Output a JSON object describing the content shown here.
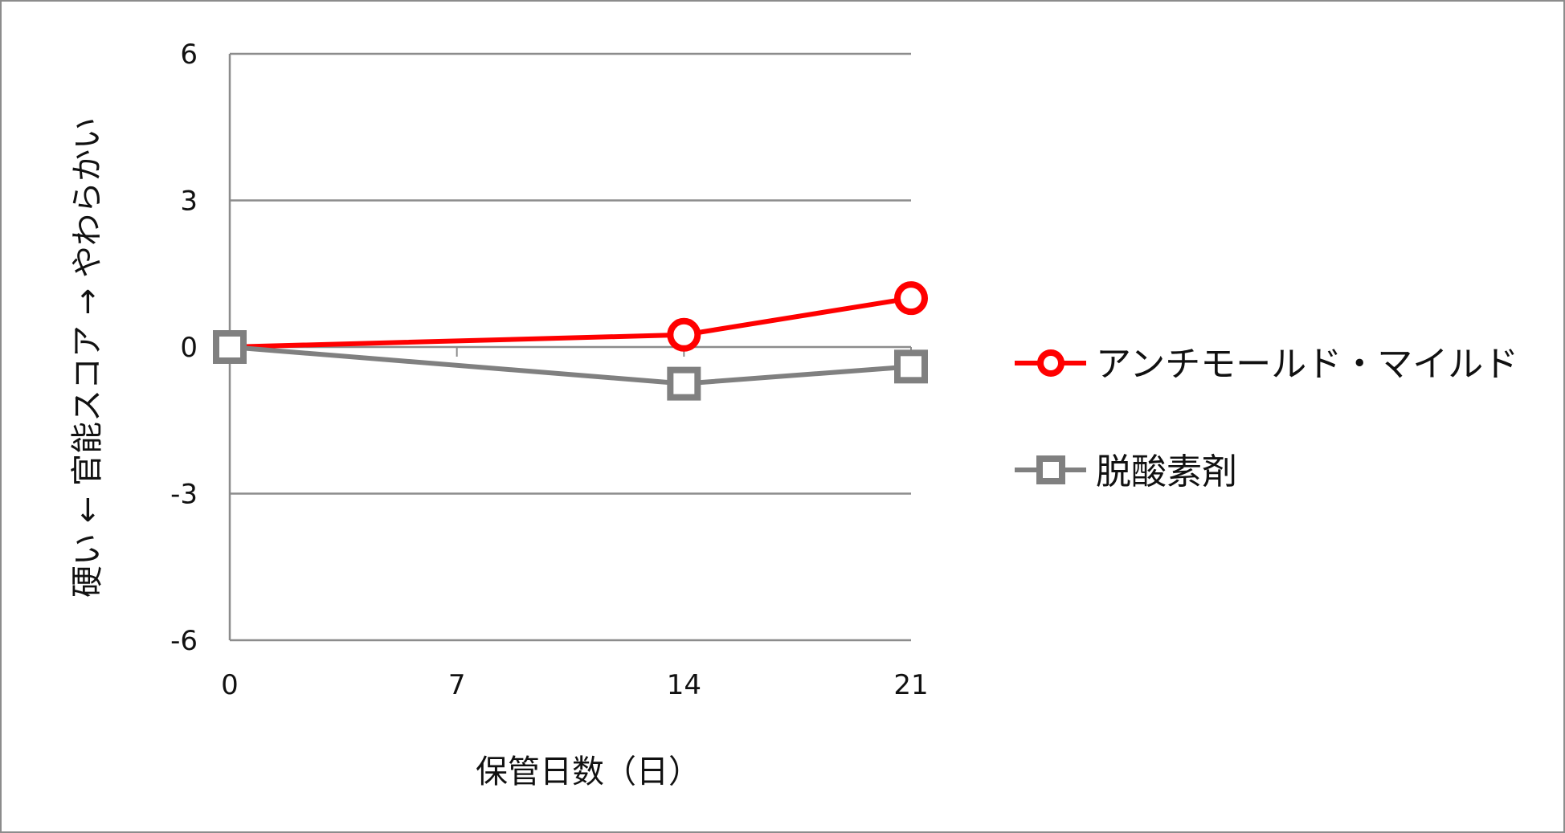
{
  "chart_data": {
    "type": "line",
    "title": "",
    "xlabel": "保管日数（日）",
    "ylabel": "硬い ← 官能スコア → やわらかい",
    "x_ticks": [
      0,
      7,
      14,
      21
    ],
    "y_ticks": [
      6,
      3,
      0,
      -3,
      -6
    ],
    "xlim": [
      0,
      21
    ],
    "ylim": [
      -6,
      6
    ],
    "grid": "horizontal",
    "legend_position": "right",
    "series": [
      {
        "name": "アンチモールド・マイルド",
        "x": [
          0,
          14,
          21
        ],
        "values": [
          0,
          0.25,
          1.0
        ],
        "color": "#ff0000",
        "marker": "circle"
      },
      {
        "name": "脱酸素剤",
        "x": [
          0,
          14,
          21
        ],
        "values": [
          0,
          -0.75,
          -0.4
        ],
        "color": "#808080",
        "marker": "square"
      }
    ]
  }
}
